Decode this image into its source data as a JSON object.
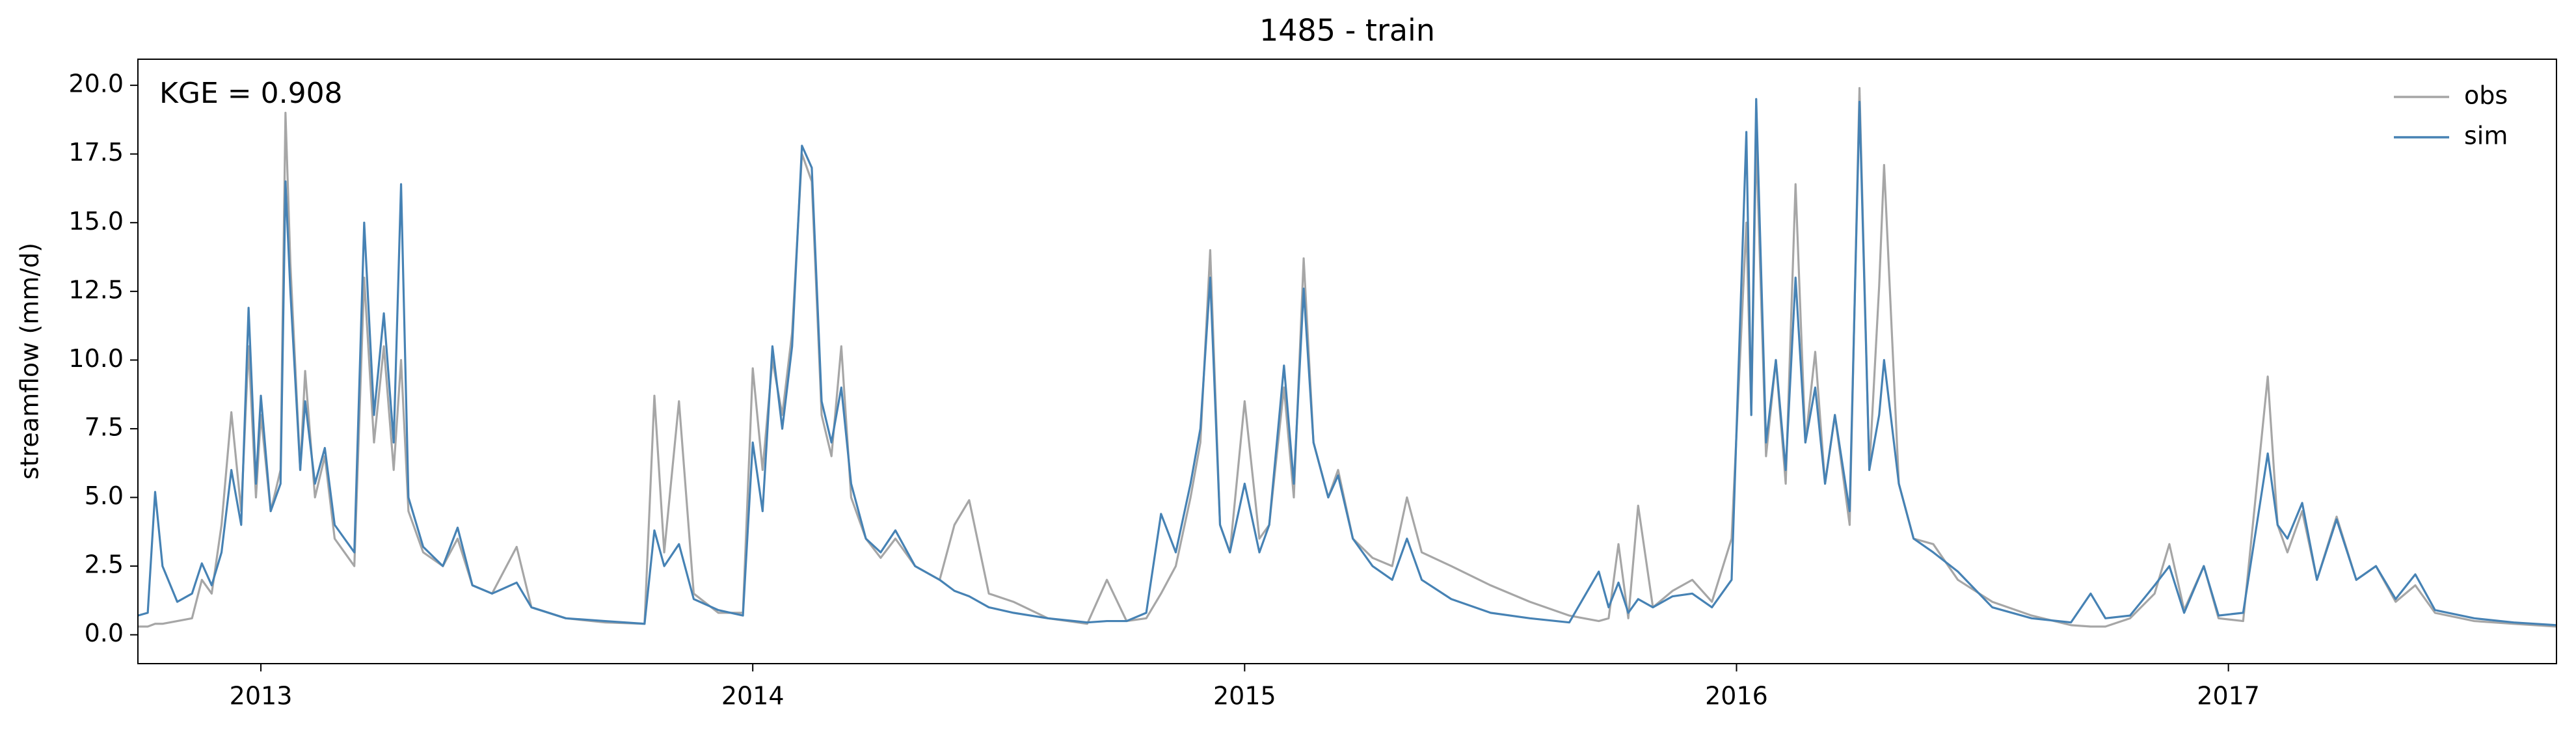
{
  "chart_data": {
    "type": "line",
    "title": "1485 - train",
    "ylabel": "streamflow (mm/d)",
    "annotation": "KGE = 0.908",
    "legend": "upper right",
    "grid": false,
    "xlim": [
      2012.75,
      2017.667
    ],
    "ylim": [
      -1.05,
      20.95
    ],
    "xticks": [
      2013,
      2014,
      2015,
      2016,
      2017
    ],
    "yticks": [
      {
        "value": 0,
        "label": "0.0"
      },
      2.5,
      {
        "value": 5,
        "label": "5.0"
      },
      7.5,
      {
        "value": 10,
        "label": "10.0"
      },
      12.5,
      {
        "value": 15,
        "label": "15.0"
      },
      17.5,
      {
        "value": 20,
        "label": "20.0"
      }
    ],
    "x": [
      2012.75,
      2012.77,
      2012.785,
      2012.8,
      2012.83,
      2012.86,
      2012.88,
      2012.9,
      2012.92,
      2012.94,
      2012.96,
      2012.975,
      2012.99,
      2013.0,
      2013.02,
      2013.04,
      2013.05,
      2013.06,
      2013.08,
      2013.09,
      2013.11,
      2013.13,
      2013.15,
      2013.17,
      2013.19,
      2013.21,
      2013.23,
      2013.25,
      2013.27,
      2013.285,
      2013.3,
      2013.33,
      2013.37,
      2013.4,
      2013.43,
      2013.47,
      2013.52,
      2013.55,
      2013.62,
      2013.7,
      2013.78,
      2013.8,
      2013.82,
      2013.85,
      2013.88,
      2013.93,
      2013.98,
      2014.0,
      2014.02,
      2014.04,
      2014.06,
      2014.08,
      2014.1,
      2014.12,
      2014.14,
      2014.16,
      2014.18,
      2014.2,
      2014.23,
      2014.26,
      2014.29,
      2014.33,
      2014.38,
      2014.41,
      2014.44,
      2014.48,
      2014.53,
      2014.6,
      2014.68,
      2014.72,
      2014.76,
      2014.8,
      2014.83,
      2014.86,
      2014.89,
      2014.91,
      2014.93,
      2014.95,
      2014.97,
      2015.0,
      2015.03,
      2015.05,
      2015.08,
      2015.1,
      2015.12,
      2015.14,
      2015.17,
      2015.19,
      2015.22,
      2015.26,
      2015.3,
      2015.33,
      2015.36,
      2015.42,
      2015.5,
      2015.58,
      2015.66,
      2015.72,
      2015.74,
      2015.76,
      2015.78,
      2015.8,
      2015.83,
      2015.87,
      2015.91,
      2015.95,
      2015.99,
      2016.02,
      2016.03,
      2016.04,
      2016.06,
      2016.08,
      2016.1,
      2016.12,
      2016.14,
      2016.16,
      2016.18,
      2016.2,
      2016.23,
      2016.25,
      2016.27,
      2016.29,
      2016.3,
      2016.33,
      2016.36,
      2016.4,
      2016.45,
      2016.52,
      2016.6,
      2016.68,
      2016.72,
      2016.75,
      2016.8,
      2016.85,
      2016.88,
      2016.91,
      2016.95,
      2016.98,
      2017.03,
      2017.08,
      2017.1,
      2017.12,
      2017.15,
      2017.18,
      2017.22,
      2017.26,
      2017.3,
      2017.34,
      2017.38,
      2017.42,
      2017.5,
      2017.58,
      2017.667
    ],
    "series": [
      {
        "name": "obs",
        "color": "#a6a6a6",
        "values": [
          0.3,
          0.3,
          0.4,
          0.4,
          0.5,
          0.6,
          2.0,
          1.5,
          4.0,
          8.1,
          4.5,
          10.5,
          5.0,
          8.0,
          4.5,
          6.0,
          19.0,
          13.5,
          6.0,
          9.6,
          5.0,
          6.5,
          3.5,
          3.0,
          2.5,
          13.0,
          7.0,
          10.5,
          6.0,
          10.0,
          4.5,
          3.0,
          2.5,
          3.5,
          1.8,
          1.5,
          3.2,
          1.0,
          0.6,
          0.45,
          0.4,
          8.7,
          3.0,
          8.5,
          1.5,
          0.8,
          0.8,
          9.7,
          6.0,
          10.0,
          8.0,
          11.0,
          17.5,
          16.5,
          8.0,
          6.5,
          10.5,
          5.0,
          3.5,
          2.8,
          3.5,
          2.5,
          2.0,
          4.0,
          4.9,
          1.5,
          1.2,
          0.6,
          0.4,
          2.0,
          0.5,
          0.6,
          1.5,
          2.5,
          5.0,
          7.0,
          14.0,
          4.0,
          3.0,
          8.5,
          3.5,
          4.0,
          9.0,
          5.0,
          13.7,
          7.0,
          5.0,
          6.0,
          3.5,
          2.8,
          2.5,
          5.0,
          3.0,
          2.5,
          1.8,
          1.2,
          0.7,
          0.5,
          0.6,
          3.3,
          0.6,
          4.7,
          1.0,
          1.6,
          2.0,
          1.2,
          3.5,
          15.0,
          8.0,
          18.0,
          6.5,
          10.0,
          5.5,
          16.4,
          7.0,
          10.3,
          5.5,
          8.0,
          4.0,
          19.9,
          6.0,
          12.7,
          17.1,
          5.5,
          3.5,
          3.3,
          2.0,
          1.2,
          0.7,
          0.35,
          0.3,
          0.3,
          0.6,
          1.5,
          3.3,
          0.9,
          2.5,
          0.6,
          0.5,
          9.4,
          4.0,
          3.0,
          4.5,
          2.0,
          4.3,
          2.0,
          2.5,
          1.2,
          1.8,
          0.8,
          0.5,
          0.4,
          0.3
        ]
      },
      {
        "name": "sim",
        "color": "#4682b4",
        "values": [
          0.7,
          0.8,
          5.2,
          2.5,
          1.2,
          1.5,
          2.6,
          1.8,
          3.0,
          6.0,
          4.0,
          11.9,
          5.5,
          8.7,
          4.5,
          5.5,
          16.5,
          12.5,
          6.0,
          8.5,
          5.5,
          6.8,
          4.0,
          3.5,
          3.0,
          15.0,
          8.0,
          11.7,
          7.0,
          16.4,
          5.0,
          3.2,
          2.5,
          3.9,
          1.8,
          1.5,
          1.9,
          1.0,
          0.6,
          0.5,
          0.4,
          3.8,
          2.5,
          3.3,
          1.3,
          0.9,
          0.7,
          7.0,
          4.5,
          10.5,
          7.5,
          10.5,
          17.8,
          17.0,
          8.5,
          7.0,
          9.0,
          5.5,
          3.5,
          3.0,
          3.8,
          2.5,
          2.0,
          1.6,
          1.4,
          1.0,
          0.8,
          0.6,
          0.45,
          0.5,
          0.5,
          0.8,
          4.4,
          3.0,
          5.5,
          7.5,
          13.0,
          4.0,
          3.0,
          5.5,
          3.0,
          4.0,
          9.8,
          5.5,
          12.6,
          7.0,
          5.0,
          5.8,
          3.5,
          2.5,
          2.0,
          3.5,
          2.0,
          1.3,
          0.8,
          0.6,
          0.45,
          2.3,
          1.0,
          1.9,
          0.8,
          1.3,
          1.0,
          1.4,
          1.5,
          1.0,
          2.0,
          18.3,
          8.0,
          19.5,
          7.0,
          10.0,
          6.0,
          13.0,
          7.0,
          9.0,
          5.5,
          8.0,
          4.5,
          19.4,
          6.0,
          8.0,
          10.0,
          5.5,
          3.5,
          3.0,
          2.3,
          1.0,
          0.6,
          0.45,
          1.5,
          0.6,
          0.7,
          1.8,
          2.5,
          0.8,
          2.5,
          0.7,
          0.8,
          6.6,
          4.0,
          3.5,
          4.8,
          2.0,
          4.2,
          2.0,
          2.5,
          1.3,
          2.2,
          0.9,
          0.6,
          0.45,
          0.35
        ]
      }
    ]
  }
}
